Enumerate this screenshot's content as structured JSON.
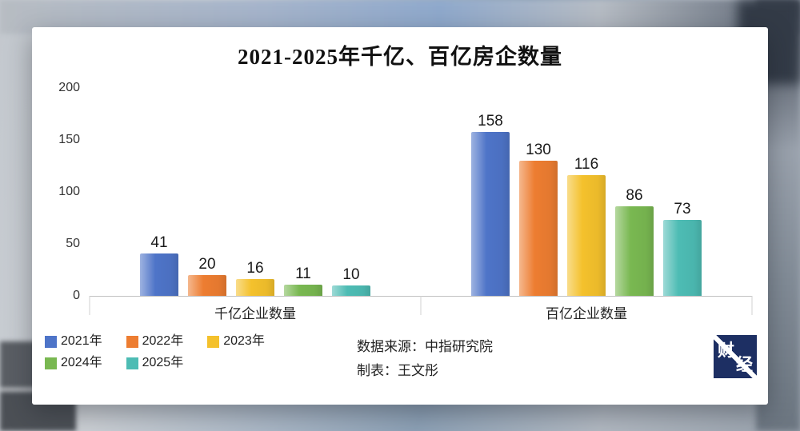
{
  "chart_data": {
    "type": "bar",
    "title": "2021-2025年千亿、百亿房企数量",
    "categories": [
      "千亿企业数量",
      "百亿企业数量"
    ],
    "series": [
      {
        "name": "2021年",
        "color": "#4E74C8",
        "values": [
          41,
          158
        ]
      },
      {
        "name": "2022年",
        "color": "#ED7D31",
        "values": [
          20,
          130
        ]
      },
      {
        "name": "2023年",
        "color": "#F4C12C",
        "values": [
          16,
          116
        ]
      },
      {
        "name": "2024年",
        "color": "#79B851",
        "values": [
          11,
          86
        ]
      },
      {
        "name": "2025年",
        "color": "#4DBCB4",
        "values": [
          10,
          73
        ]
      }
    ],
    "ylim": [
      0,
      200
    ],
    "yticks": [
      0,
      50,
      100,
      150,
      200
    ],
    "grid": false,
    "legend_position": "bottom-left",
    "legend_rows": [
      3,
      2
    ]
  },
  "footer": {
    "source_line1": "数据来源：中指研究院",
    "source_line2": "制表：王文彤"
  },
  "logo": {
    "char_top": "财",
    "char_bottom": "经"
  }
}
